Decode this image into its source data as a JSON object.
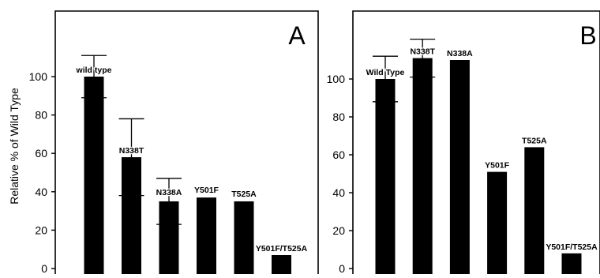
{
  "figure": {
    "ylabel": "Relative % of Wild Type"
  },
  "chart_data": [
    {
      "type": "bar",
      "panel": "A",
      "categories": [
        "wild type",
        "N338T",
        "N338A",
        "Y501F",
        "T525A",
        "Y501F/T525A"
      ],
      "values": [
        100,
        58,
        35,
        37,
        35,
        7
      ],
      "error": [
        11,
        20,
        12,
        null,
        null,
        null
      ],
      "ylim": [
        0,
        120
      ],
      "yticks": [
        0,
        20,
        40,
        60,
        80,
        100
      ],
      "ylabel": "Relative % of Wild Type",
      "color": "#000000"
    },
    {
      "type": "bar",
      "panel": "B",
      "categories": [
        "Wild Type",
        "N338T",
        "N338A",
        "Y501F",
        "T525A",
        "Y501F/T525A"
      ],
      "values": [
        100,
        111,
        110,
        51,
        64,
        8
      ],
      "error": [
        12,
        10,
        null,
        null,
        null,
        null
      ],
      "ylim": [
        0,
        122
      ],
      "yticks": [
        0,
        20,
        40,
        60,
        80,
        100
      ],
      "ylabel": "",
      "color": "#000000"
    }
  ]
}
